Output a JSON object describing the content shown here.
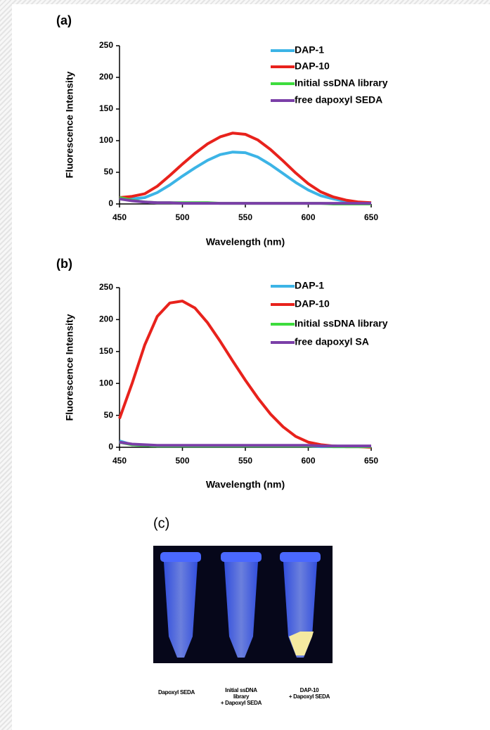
{
  "chart_data": [
    {
      "type": "line",
      "title": "(a)",
      "x_label": "Wavelength (nm)",
      "y_label": "Fluorescence Intensity",
      "x": [
        450,
        460,
        470,
        480,
        490,
        500,
        510,
        520,
        530,
        540,
        550,
        560,
        570,
        580,
        590,
        600,
        610,
        620,
        630,
        640,
        650
      ],
      "series": [
        {
          "name": "DAP-1",
          "color": "#3cb4e6",
          "values": [
            8,
            8,
            10,
            18,
            30,
            44,
            57,
            69,
            78,
            82,
            81,
            74,
            62,
            48,
            34,
            22,
            13,
            8,
            4,
            2,
            1
          ]
        },
        {
          "name": "DAP-10",
          "color": "#e8221c",
          "values": [
            10,
            12,
            16,
            28,
            45,
            63,
            80,
            95,
            106,
            112,
            110,
            101,
            86,
            68,
            49,
            32,
            19,
            11,
            6,
            3,
            2
          ]
        },
        {
          "name": "Initial ssDNA library",
          "color": "#3ddc3d",
          "values": [
            10,
            6,
            3,
            2,
            2,
            2,
            2,
            2,
            1,
            1,
            1,
            1,
            1,
            1,
            1,
            1,
            1,
            0,
            0,
            0,
            0
          ]
        },
        {
          "name": "free dapoxyl SEDA",
          "color": "#7b3fa8",
          "values": [
            8,
            5,
            3,
            2,
            2,
            1,
            1,
            1,
            1,
            1,
            1,
            1,
            1,
            1,
            1,
            1,
            1,
            1,
            1,
            1,
            1
          ]
        }
      ],
      "xlim": [
        450,
        650
      ],
      "xticks": [
        450,
        500,
        550,
        600,
        650
      ],
      "ylim": [
        0,
        250
      ],
      "yticks": [
        0,
        50,
        100,
        150,
        200,
        250
      ],
      "grid": false,
      "legend": "upper right"
    },
    {
      "type": "line",
      "title": "(b)",
      "x_label": "Wavelength (nm)",
      "y_label": "Fluorescence Intensity",
      "x": [
        450,
        460,
        470,
        480,
        490,
        500,
        510,
        520,
        530,
        540,
        550,
        560,
        570,
        580,
        590,
        600,
        610,
        620,
        630,
        640,
        650
      ],
      "series": [
        {
          "name": "DAP-1",
          "color": "#3cb4e6",
          "values": [
            10,
            4,
            3,
            2,
            2,
            2,
            2,
            2,
            2,
            2,
            2,
            2,
            2,
            2,
            2,
            2,
            1,
            1,
            1,
            1,
            1
          ]
        },
        {
          "name": "DAP-10",
          "color": "#e8221c",
          "values": [
            45,
            100,
            160,
            205,
            226,
            229,
            218,
            195,
            166,
            135,
            105,
            77,
            52,
            32,
            17,
            8,
            4,
            2,
            1,
            1,
            0
          ]
        },
        {
          "name": "Initial ssDNA library",
          "color": "#3ddc3d",
          "values": [
            8,
            4,
            3,
            2,
            2,
            2,
            2,
            2,
            2,
            2,
            2,
            2,
            2,
            2,
            2,
            2,
            2,
            1,
            1,
            1,
            1
          ]
        },
        {
          "name": "free dapoxyl SA",
          "color": "#7b3fa8",
          "values": [
            8,
            5,
            4,
            3,
            3,
            3,
            3,
            3,
            3,
            3,
            3,
            3,
            3,
            3,
            3,
            3,
            2,
            2,
            2,
            2,
            2
          ]
        }
      ],
      "xlim": [
        450,
        650
      ],
      "xticks": [
        450,
        500,
        550,
        600,
        650
      ],
      "ylim": [
        0,
        250
      ],
      "yticks": [
        0,
        50,
        100,
        150,
        200,
        250
      ],
      "grid": false,
      "legend": "upper right"
    }
  ],
  "panel_c": {
    "label": "(c)",
    "captions": [
      [
        "Dapoxyl SEDA"
      ],
      [
        "Initial ssDNA",
        "library",
        "+ Dapoxyl SEDA"
      ],
      [
        "DAP-10",
        "+ Dapoxyl SEDA"
      ]
    ]
  }
}
